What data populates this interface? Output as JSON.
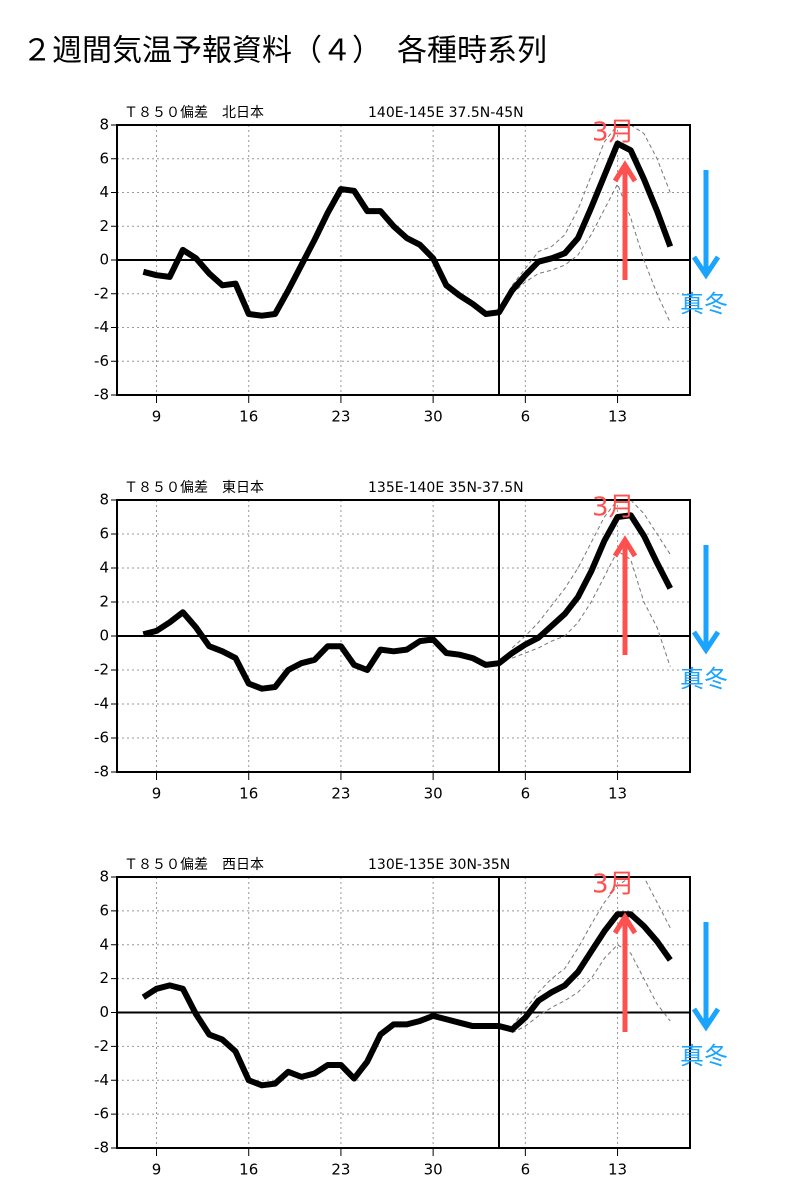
{
  "title": "２週間気温予報資料（４）　各種時系列",
  "chart_data": [
    {
      "type": "line",
      "title": "Ｔ８５０偏差　北日本",
      "subtitle": "140E-145E  37.5N-45N",
      "annotations": [
        "3月",
        "真冬"
      ],
      "xlim": [
        6,
        49.5
      ],
      "ylim": [
        -8,
        8
      ],
      "xticks": [
        9,
        16,
        23,
        30,
        {
          "value": 37,
          "label": "6"
        },
        {
          "value": 44,
          "label": "13"
        }
      ],
      "yticks": [
        -8,
        -6,
        -4,
        -2,
        0,
        2,
        4,
        6,
        8
      ],
      "zero_line": 0,
      "forecast_start": 35,
      "grid": true,
      "series": [
        {
          "color": "#000000",
          "dash": false,
          "x": [
            8,
            9,
            10,
            11,
            12,
            13,
            14,
            15,
            16,
            17,
            18,
            19,
            20,
            21,
            22,
            23,
            24,
            25,
            26,
            27,
            28,
            29,
            30,
            31,
            32,
            33,
            34,
            35,
            36,
            37,
            38,
            39,
            40,
            41,
            42,
            43,
            44,
            45,
            46,
            47,
            48
          ],
          "values": [
            -0.7,
            -0.9,
            -1.0,
            0.6,
            0.1,
            -0.8,
            -1.5,
            -1.4,
            -3.2,
            -3.3,
            -3.2,
            -1.8,
            -0.3,
            1.2,
            2.8,
            4.2,
            4.1,
            2.9,
            2.9,
            2.0,
            1.3,
            0.9,
            0.1,
            -1.5,
            -2.1,
            -2.6,
            -3.2,
            -3.1,
            -1.8,
            -0.9,
            -0.1,
            0.1,
            0.4,
            1.3,
            3.1,
            5.0,
            6.9,
            6.5,
            4.8,
            2.9,
            0.8
          ]
        },
        {
          "color": "#777777",
          "dash": true,
          "x": [
            36,
            37,
            38,
            39,
            40,
            41,
            42,
            43,
            44,
            45,
            46,
            47,
            48
          ],
          "values": [
            -1.5,
            -0.5,
            0.5,
            0.8,
            1.5,
            3.0,
            5.0,
            7.0,
            8.0,
            8.0,
            7.5,
            6.0,
            4.0
          ]
        },
        {
          "color": "#777777",
          "dash": true,
          "x": [
            36,
            37,
            38,
            39,
            40,
            41,
            42,
            43,
            44,
            45,
            46,
            47,
            48
          ],
          "values": [
            -2.0,
            -1.3,
            -0.8,
            -0.6,
            -0.3,
            0.3,
            1.5,
            3.0,
            4.5,
            2.5,
            0.0,
            -2.0,
            -3.7
          ]
        }
      ]
    },
    {
      "type": "line",
      "title": "Ｔ８５０偏差　東日本",
      "subtitle": "135E-140E  35N-37.5N",
      "annotations": [
        "3月",
        "真冬"
      ],
      "xlim": [
        6,
        49.5
      ],
      "ylim": [
        -8,
        8
      ],
      "xticks": [
        9,
        16,
        23,
        30,
        {
          "value": 37,
          "label": "6"
        },
        {
          "value": 44,
          "label": "13"
        }
      ],
      "yticks": [
        -8,
        -6,
        -4,
        -2,
        0,
        2,
        4,
        6,
        8
      ],
      "zero_line": 0,
      "forecast_start": 35,
      "grid": true,
      "series": [
        {
          "color": "#000000",
          "dash": false,
          "x": [
            8,
            9,
            10,
            11,
            12,
            13,
            14,
            15,
            16,
            17,
            18,
            19,
            20,
            21,
            22,
            23,
            24,
            25,
            26,
            27,
            28,
            29,
            30,
            31,
            32,
            33,
            34,
            35,
            36,
            37,
            38,
            39,
            40,
            41,
            42,
            43,
            44,
            45,
            46,
            47,
            48
          ],
          "values": [
            0.1,
            0.3,
            0.8,
            1.4,
            0.5,
            -0.6,
            -0.9,
            -1.3,
            -2.8,
            -3.1,
            -3.0,
            -2.0,
            -1.6,
            -1.4,
            -0.6,
            -0.6,
            -1.7,
            -2.0,
            -0.8,
            -0.9,
            -0.8,
            -0.3,
            -0.2,
            -1.0,
            -1.1,
            -1.3,
            -1.7,
            -1.6,
            -1.0,
            -0.5,
            -0.1,
            0.6,
            1.3,
            2.3,
            3.8,
            5.6,
            7.0,
            7.1,
            5.9,
            4.3,
            2.8
          ]
        },
        {
          "color": "#777777",
          "dash": true,
          "x": [
            36,
            37,
            38,
            39,
            40,
            41,
            42,
            43,
            44,
            45,
            46,
            47,
            48
          ],
          "values": [
            -0.7,
            0.0,
            0.8,
            1.8,
            2.8,
            4.0,
            5.5,
            7.0,
            8.0,
            8.0,
            7.2,
            6.0,
            4.8
          ]
        },
        {
          "color": "#777777",
          "dash": true,
          "x": [
            36,
            37,
            38,
            39,
            40,
            41,
            42,
            43,
            44,
            45,
            46,
            47,
            48
          ],
          "values": [
            -1.3,
            -1.0,
            -0.7,
            -0.3,
            0.0,
            0.8,
            2.0,
            3.5,
            5.0,
            4.5,
            2.0,
            0.5,
            -1.8
          ]
        }
      ]
    },
    {
      "type": "line",
      "title": "Ｔ８５０偏差　西日本",
      "subtitle": "130E-135E  30N-35N",
      "annotations": [
        "3月",
        "真冬"
      ],
      "xlim": [
        6,
        49.5
      ],
      "ylim": [
        -8,
        8
      ],
      "xticks": [
        9,
        16,
        23,
        30,
        {
          "value": 37,
          "label": "6"
        },
        {
          "value": 44,
          "label": "13"
        }
      ],
      "yticks": [
        -8,
        -6,
        -4,
        -2,
        0,
        2,
        4,
        6,
        8
      ],
      "zero_line": 0,
      "forecast_start": 35,
      "grid": true,
      "series": [
        {
          "color": "#000000",
          "dash": false,
          "x": [
            8,
            9,
            10,
            11,
            12,
            13,
            14,
            15,
            16,
            17,
            18,
            19,
            20,
            21,
            22,
            23,
            24,
            25,
            26,
            27,
            28,
            29,
            30,
            31,
            32,
            33,
            34,
            35,
            36,
            37,
            38,
            39,
            40,
            41,
            42,
            43,
            44,
            45,
            46,
            47,
            48
          ],
          "values": [
            0.9,
            1.4,
            1.6,
            1.4,
            -0.1,
            -1.3,
            -1.6,
            -2.3,
            -4.0,
            -4.3,
            -4.2,
            -3.5,
            -3.8,
            -3.6,
            -3.1,
            -3.1,
            -3.9,
            -2.9,
            -1.3,
            -0.7,
            -0.7,
            -0.5,
            -0.2,
            -0.4,
            -0.6,
            -0.8,
            -0.8,
            -0.8,
            -1.0,
            -0.3,
            0.7,
            1.2,
            1.6,
            2.4,
            3.6,
            4.8,
            5.8,
            5.8,
            5.1,
            4.2,
            3.1
          ]
        },
        {
          "color": "#777777",
          "dash": true,
          "x": [
            36,
            37,
            38,
            39,
            40,
            41,
            42,
            43,
            44,
            45,
            46,
            47,
            48
          ],
          "values": [
            -0.8,
            0.2,
            1.2,
            2.0,
            2.6,
            3.8,
            5.2,
            6.5,
            7.5,
            8.0,
            8.0,
            6.5,
            5.0
          ]
        },
        {
          "color": "#777777",
          "dash": true,
          "x": [
            36,
            37,
            38,
            39,
            40,
            41,
            42,
            43,
            44,
            45,
            46,
            47,
            48
          ],
          "values": [
            -1.2,
            -0.8,
            -0.2,
            0.3,
            0.7,
            1.2,
            2.0,
            3.2,
            4.0,
            3.5,
            2.0,
            0.5,
            -0.5
          ]
        }
      ]
    }
  ]
}
